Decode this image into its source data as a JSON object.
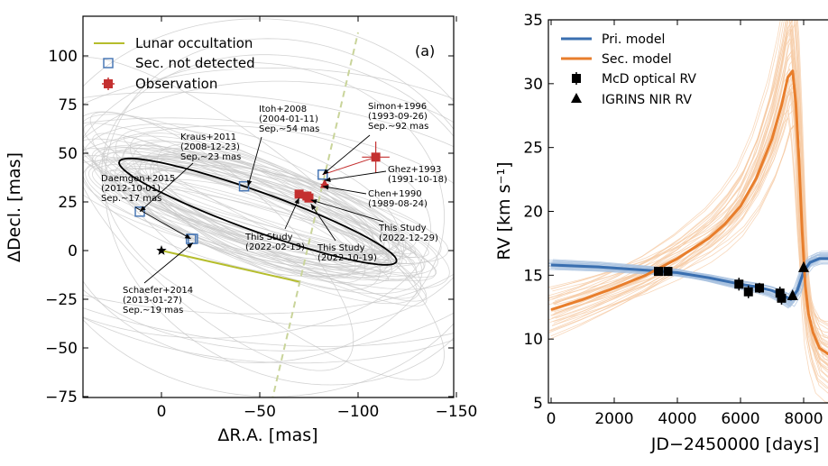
{
  "chart_data": [
    {
      "type": "scatter",
      "panel_label": "(a)",
      "xlabel": "ΔR.A. [mas]",
      "ylabel": "ΔDecl. [mas]",
      "xlim": [
        40,
        -150
      ],
      "ylim": [
        -75,
        115
      ],
      "xticks": [
        "0",
        "−50",
        "−100",
        "−150"
      ],
      "yticks": [
        "−75",
        "−50",
        "−25",
        "0",
        "25",
        "50",
        "75",
        "100"
      ],
      "legend": {
        "placement": "top-left",
        "items": [
          "Lunar occultation",
          "Sec. not detected",
          "Observation"
        ]
      },
      "colors": {
        "occultation": "#b5bd2c",
        "not_detected": "#4a78b5",
        "observation": "#c43030",
        "orbit": "#000000",
        "orbit_samples": "#c8c8c8",
        "occultation_dashed": "#c9d49a"
      },
      "primary_star": {
        "x": 0,
        "y": 0
      },
      "best_fit_orbit": {
        "center": [
          -49,
          20
        ],
        "a": 75,
        "b": 10,
        "tilt_deg": 20
      },
      "occultation_line": {
        "x": [
          0,
          -70
        ],
        "y": [
          0,
          -16
        ]
      },
      "occultation_dashed_line": {
        "x": [
          -56,
          -100
        ],
        "y": [
          -78,
          112
        ]
      },
      "not_detected_points": [
        {
          "x": -15,
          "y": 6
        },
        {
          "x": -16,
          "y": 6
        },
        {
          "x": 11,
          "y": 20
        },
        {
          "x": -42,
          "y": 33
        },
        {
          "x": -82,
          "y": 39
        }
      ],
      "observations": [
        {
          "x": -109,
          "y": 48,
          "xerr": 7,
          "yerr": 8
        },
        {
          "x": -83,
          "y": 34,
          "xerr": 2,
          "yerr": 2
        },
        {
          "x": -70,
          "y": 29,
          "xerr": 1.5,
          "yerr": 1.5
        },
        {
          "x": -74,
          "y": 28,
          "xerr": 1.5,
          "yerr": 1.5
        },
        {
          "x": -75,
          "y": 27,
          "xerr": 1.5,
          "yerr": 1.5
        }
      ],
      "annotations": [
        {
          "lines": [
            "Itoh+2008",
            "(2004-01-11)",
            "Sep.~54 mas"
          ]
        },
        {
          "lines": [
            "Simon+1996",
            "(1993-09-26)",
            "Sep.~92 mas"
          ]
        },
        {
          "lines": [
            "Kraus+2011",
            "(2008-12-23)",
            "Sep.~23 mas"
          ]
        },
        {
          "lines": [
            "Daemgen+2015",
            "(2012-10-01)",
            "Sep.~17 mas"
          ]
        },
        {
          "lines": [
            "Ghez+1993",
            "(1991-10-18)"
          ]
        },
        {
          "lines": [
            "Chen+1990",
            "(1989-08-24)"
          ]
        },
        {
          "lines": [
            "This Study",
            "(2022-12-29)"
          ]
        },
        {
          "lines": [
            "This Study",
            "(2022-02-13)"
          ]
        },
        {
          "lines": [
            "This Study",
            "(2022-10-19)"
          ]
        },
        {
          "lines": [
            "Schaefer+2014",
            "(2013-01-27)",
            "Sep.~19 mas"
          ]
        }
      ]
    },
    {
      "type": "line",
      "xlabel": "JD−2450000 [days]",
      "ylabel": "RV [km s⁻¹]",
      "xlim": [
        0,
        10300
      ],
      "ylim": [
        5,
        35
      ],
      "xticks": [
        "0",
        "2000",
        "4000",
        "6000",
        "8000"
      ],
      "yticks": [
        "5",
        "10",
        "15",
        "20",
        "25",
        "30",
        "35"
      ],
      "legend": {
        "placement": "top-left",
        "items": [
          "Pri. model",
          "Sec. model",
          "McD optical RV",
          "IGRINS NIR RV"
        ]
      },
      "colors": {
        "primary": "#3a6fb0",
        "primary_samples": "#a9c2e0",
        "secondary": "#e87e2c",
        "secondary_samples": "#f5c9a3",
        "points": "#000000"
      },
      "primary_model": {
        "x": [
          0,
          1500,
          3000,
          4000,
          5000,
          6000,
          6500,
          7000,
          7300,
          7600,
          7800,
          8000,
          8200,
          8500,
          9000,
          10300
        ],
        "y": [
          15.8,
          15.65,
          15.4,
          15.2,
          14.8,
          14.3,
          14.1,
          13.8,
          13.5,
          13.1,
          13.8,
          15.3,
          16.0,
          16.3,
          16.3,
          16.3
        ]
      },
      "secondary_model": {
        "x": [
          0,
          1000,
          2000,
          3000,
          4000,
          5000,
          5500,
          6000,
          6500,
          7000,
          7300,
          7500,
          7650,
          7750,
          7850,
          7950,
          8050,
          8150,
          8300,
          8500,
          8800,
          9200,
          10300
        ],
        "y": [
          12.3,
          13.1,
          14.0,
          15.0,
          16.3,
          17.9,
          19.0,
          20.4,
          22.6,
          25.7,
          28.3,
          30.5,
          31.0,
          28.5,
          24.0,
          18.5,
          14.2,
          12.0,
          10.5,
          9.3,
          8.8,
          8.7,
          8.7
        ]
      },
      "mcd_optical_rv": {
        "x": [
          3400,
          3700,
          5950,
          6250,
          6600,
          7250,
          7300
        ],
        "y": [
          15.3,
          15.3,
          14.3,
          13.7,
          14.0,
          13.6,
          13.2
        ],
        "yerr": [
          0.3,
          0.3,
          0.5,
          0.5,
          0.4,
          0.5,
          0.5
        ]
      },
      "igrins_nir_rv": {
        "x": [
          7650,
          8000
        ],
        "y": [
          13.4,
          15.6
        ]
      }
    }
  ]
}
